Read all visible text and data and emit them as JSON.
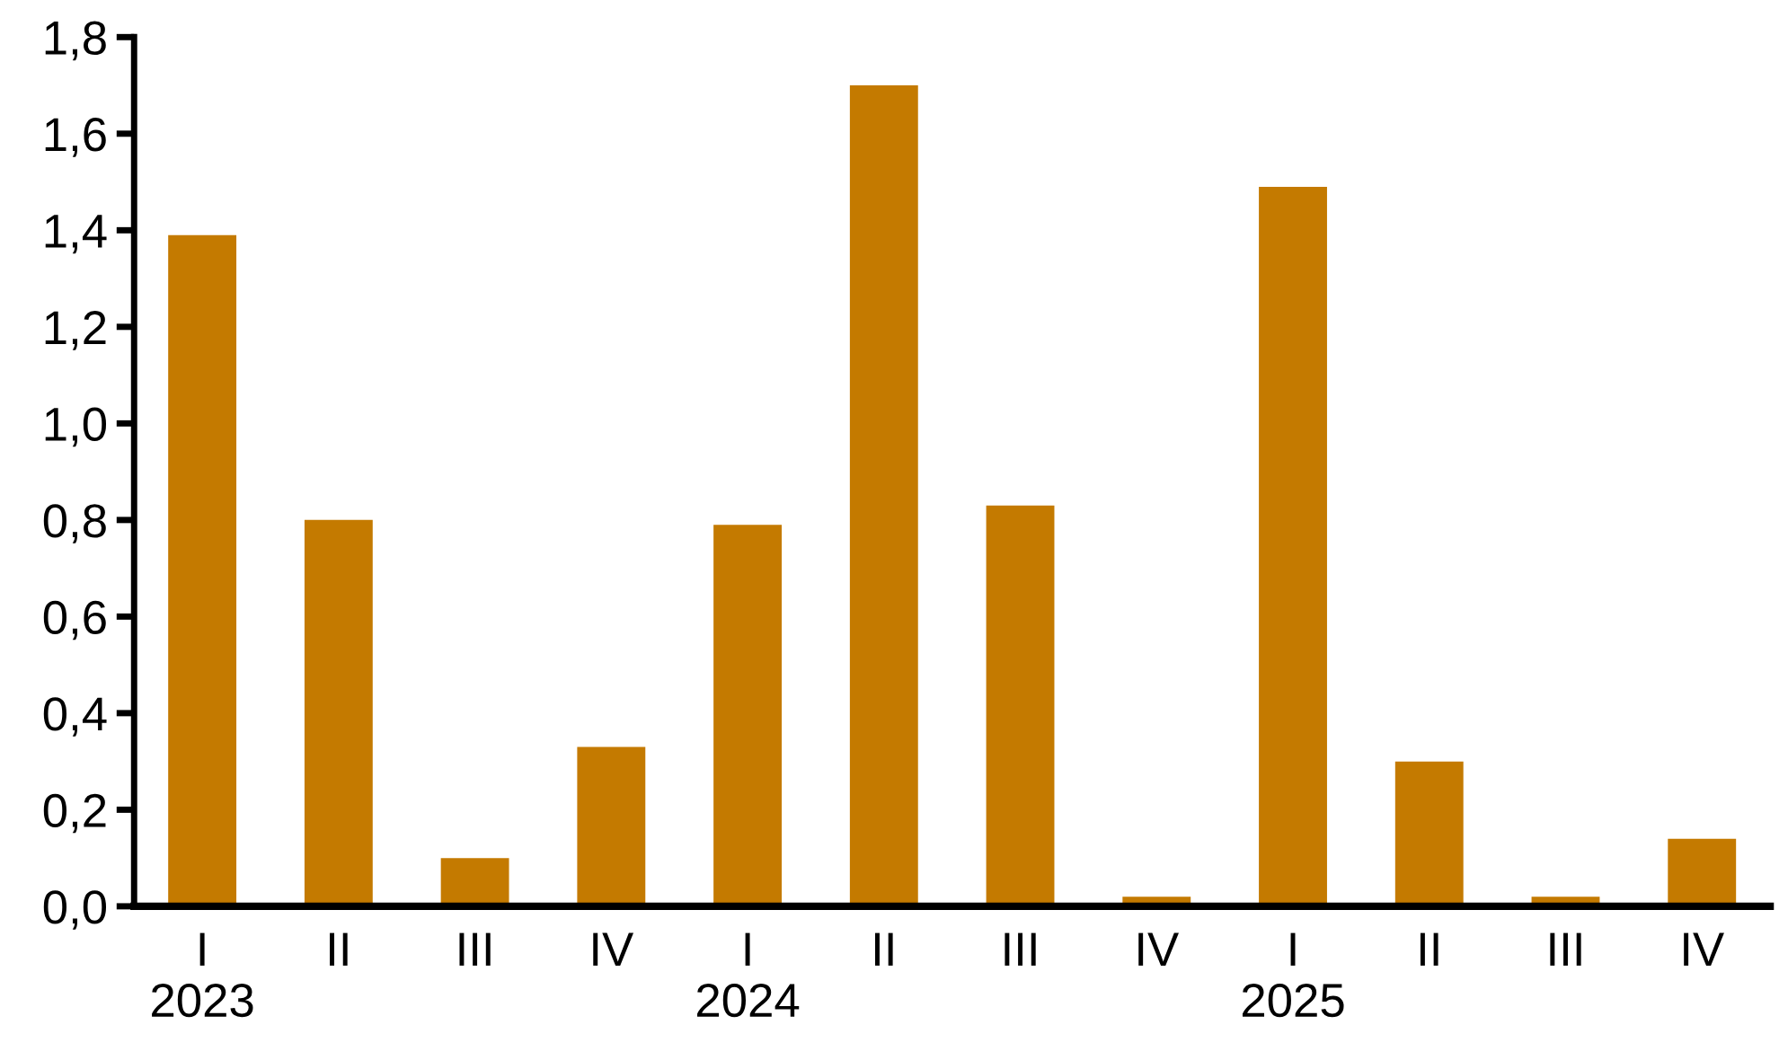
{
  "chart_data": {
    "type": "bar",
    "categories": [
      "I\n2023",
      "II",
      "III",
      "IV",
      "I\n2024",
      "II",
      "III",
      "IV",
      "I\n2025",
      "II",
      "III",
      "IV"
    ],
    "values": [
      1.39,
      0.8,
      0.1,
      0.33,
      0.79,
      1.7,
      0.83,
      0.02,
      1.49,
      0.3,
      0.02,
      0.14
    ],
    "color": "#c47a00",
    "ylim": [
      0,
      1.8
    ],
    "yticks": [
      {
        "value": 0,
        "label": "0,0"
      },
      {
        "value": 0.2,
        "label": "0,2"
      },
      {
        "value": 0.4,
        "label": "0,4"
      },
      {
        "value": 0.6,
        "label": "0,6"
      },
      {
        "value": 0.8,
        "label": "0,8"
      },
      {
        "value": 1.0,
        "label": "1,0"
      },
      {
        "value": 1.2,
        "label": "1,2"
      },
      {
        "value": 1.4,
        "label": "1,4"
      },
      {
        "value": 1.6,
        "label": "1,6"
      },
      {
        "value": 1.8,
        "label": "1,8"
      }
    ],
    "grid": false
  }
}
